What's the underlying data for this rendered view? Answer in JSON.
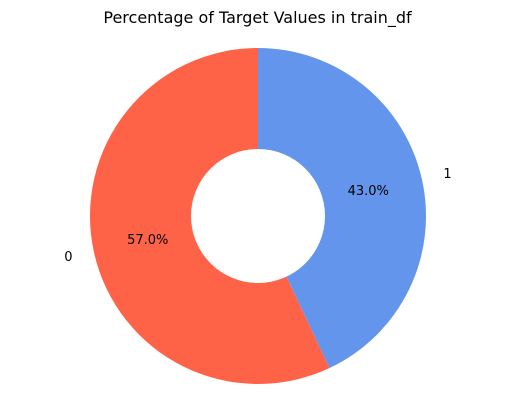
{
  "chart_data": {
    "type": "pie",
    "style": "donut",
    "title": "Percentage of Target Values in train_df",
    "labels": [
      "0",
      "1"
    ],
    "values": [
      57.0,
      43.0
    ],
    "percent_labels": [
      "57.0%",
      "43.0%"
    ],
    "colors": [
      "#FF6347",
      "#6495ED"
    ],
    "start_angle_deg": 90,
    "direction": "counterclockwise",
    "legend": "none"
  }
}
